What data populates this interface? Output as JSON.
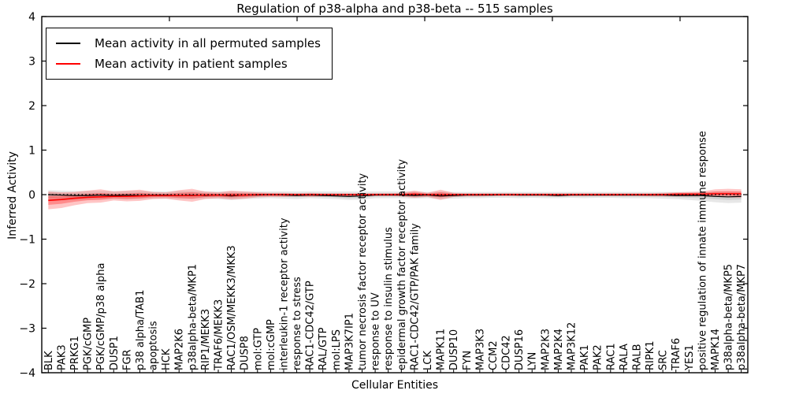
{
  "title": "Regulation of p38-alpha and p38-beta -- 515 samples",
  "axes": {
    "ylabel": "Inferred Activity",
    "xlabel": "Cellular Entities",
    "yticks": [
      -4,
      -3,
      -2,
      -1,
      0,
      1,
      2,
      3,
      4
    ],
    "ylim": [
      -4,
      4
    ]
  },
  "chart_data": {
    "type": "line",
    "title": "Regulation of p38-alpha and p38-beta -- 515 samples",
    "xlabel": "Cellular Entities",
    "ylabel": "Inferred Activity",
    "ylim": [
      -4,
      4
    ],
    "legend_position": "upper left",
    "grid": false,
    "categories": [
      "BLK",
      "PAK3",
      "PRKG1",
      "PGK/cGMP",
      "PGK/cGMP/p38 alpha",
      "DUSP1",
      "FGR",
      "p38 alpha/TAB1",
      "apoptosis",
      "HCK",
      "MAP2K6",
      "p38alpha-beta/MKP1",
      "RIP1/MEKK3",
      "TRAF6/MEKK3",
      "RAC1/OSM/MEKK3/MKK3",
      "DUSP8",
      "mol:GTP",
      "mol:cGMP",
      "interleukin-1 receptor activity",
      "response to stress",
      "RAC1-CDC42/GTP",
      "RAL/GTP",
      "mol:LPS",
      "MAP3K7IP1",
      "tumor necrosis factor receptor activity",
      "response to UV",
      "response to insulin stimulus",
      "epidermal growth factor receptor activity",
      "RAC1-CDC42/GTP/PAK family",
      "LCK",
      "MAPK11",
      "DUSP10",
      "FYN",
      "MAP3K3",
      "CCM2",
      "CDC42",
      "DUSP16",
      "LYN",
      "MAP2K3",
      "MAP2K4",
      "MAP3K12",
      "PAK1",
      "PAK2",
      "RAC1",
      "RALA",
      "RALB",
      "RIPK1",
      "SRC",
      "TRAF6",
      "YES1",
      "positive regulation of innate immune response",
      "MAPK14",
      "p38alpha-beta/MKP5",
      "p38alpha-beta/MKP7"
    ],
    "series": [
      {
        "name": "Mean activity in all permuted samples",
        "color": "#000000",
        "band_color": "#909090",
        "values": [
          0,
          -0.01,
          -0.02,
          -0.02,
          -0.01,
          -0.02,
          -0.01,
          -0.02,
          -0.01,
          -0.01,
          -0.02,
          -0.01,
          -0.02,
          -0.01,
          -0.03,
          -0.01,
          -0.01,
          0,
          -0.01,
          -0.02,
          -0.01,
          -0.02,
          -0.03,
          -0.04,
          -0.03,
          -0.01,
          -0.01,
          -0.01,
          -0.02,
          -0.01,
          -0.03,
          -0.02,
          -0.01,
          -0.01,
          -0.01,
          0,
          -0.01,
          -0.01,
          -0.01,
          -0.02,
          -0.01,
          -0.01,
          -0.01,
          -0.01,
          -0.01,
          -0.01,
          -0.01,
          -0.01,
          -0.02,
          -0.02,
          -0.02,
          -0.04,
          -0.05,
          -0.04
        ],
        "band_hi": [
          0.1,
          0.09,
          0.08,
          0.08,
          0.08,
          0.08,
          0.08,
          0.08,
          0.07,
          0.07,
          0.08,
          0.08,
          0.07,
          0.07,
          0.07,
          0.07,
          0.07,
          0.07,
          0.07,
          0.07,
          0.07,
          0.07,
          0.07,
          0.07,
          0.07,
          0.07,
          0.07,
          0.07,
          0.07,
          0.06,
          0.07,
          0.06,
          0.06,
          0.06,
          0.06,
          0.06,
          0.06,
          0.06,
          0.06,
          0.06,
          0.06,
          0.06,
          0.06,
          0.06,
          0.06,
          0.06,
          0.06,
          0.06,
          0.06,
          0.06,
          0.06,
          0.07,
          0.07,
          0.07
        ],
        "band_lo": [
          -0.14,
          -0.13,
          -0.12,
          -0.11,
          -0.11,
          -0.1,
          -0.11,
          -0.1,
          -0.09,
          -0.09,
          -0.1,
          -0.1,
          -0.09,
          -0.1,
          -0.12,
          -0.1,
          -0.09,
          -0.08,
          -0.09,
          -0.1,
          -0.08,
          -0.09,
          -0.1,
          -0.12,
          -0.11,
          -0.08,
          -0.08,
          -0.08,
          -0.09,
          -0.08,
          -0.1,
          -0.09,
          -0.08,
          -0.08,
          -0.07,
          -0.07,
          -0.08,
          -0.07,
          -0.08,
          -0.08,
          -0.07,
          -0.08,
          -0.07,
          -0.07,
          -0.08,
          -0.08,
          -0.08,
          -0.09,
          -0.1,
          -0.12,
          -0.14,
          -0.17,
          -0.19,
          -0.18
        ]
      },
      {
        "name": "Mean activity in patient samples",
        "color": "#ff0000",
        "band_color": "#ff3030",
        "values": [
          -0.13,
          -0.11,
          -0.08,
          -0.06,
          -0.05,
          -0.04,
          -0.04,
          -0.03,
          -0.02,
          -0.02,
          -0.02,
          -0.02,
          -0.01,
          -0.01,
          -0.01,
          -0.01,
          0,
          0,
          0,
          0,
          0,
          0,
          0,
          0,
          0,
          0,
          0,
          0,
          0.01,
          0,
          0,
          0,
          0,
          0,
          0,
          0,
          0,
          0,
          0,
          0,
          0,
          0,
          0,
          0,
          0,
          0,
          0,
          0,
          0.01,
          0.01,
          0.01,
          0.02,
          0.02,
          0.02
        ],
        "band_hi": [
          0.07,
          0.05,
          0.06,
          0.09,
          0.12,
          0.07,
          0.09,
          0.11,
          0.06,
          0.05,
          0.1,
          0.13,
          0.07,
          0.05,
          0.09,
          0.07,
          0.05,
          0.04,
          0.04,
          0.03,
          0.04,
          0.03,
          0.03,
          0.03,
          0.03,
          0.03,
          0.03,
          0.04,
          0.09,
          0.04,
          0.11,
          0.04,
          0.03,
          0.03,
          0.03,
          0.03,
          0.03,
          0.03,
          0.03,
          0.03,
          0.03,
          0.03,
          0.03,
          0.03,
          0.03,
          0.03,
          0.03,
          0.04,
          0.05,
          0.06,
          0.07,
          0.12,
          0.13,
          0.12
        ],
        "band_lo": [
          -0.33,
          -0.3,
          -0.24,
          -0.19,
          -0.18,
          -0.13,
          -0.15,
          -0.14,
          -0.1,
          -0.09,
          -0.13,
          -0.16,
          -0.1,
          -0.08,
          -0.11,
          -0.09,
          -0.06,
          -0.05,
          -0.05,
          -0.04,
          -0.05,
          -0.04,
          -0.04,
          -0.04,
          -0.04,
          -0.03,
          -0.03,
          -0.04,
          -0.07,
          -0.05,
          -0.12,
          -0.05,
          -0.04,
          -0.04,
          -0.03,
          -0.03,
          -0.03,
          -0.03,
          -0.03,
          -0.04,
          -0.03,
          -0.03,
          -0.03,
          -0.03,
          -0.03,
          -0.03,
          -0.04,
          -0.04,
          -0.04,
          -0.04,
          -0.04,
          -0.05,
          -0.06,
          -0.07
        ]
      }
    ],
    "reference_line": {
      "y": 0,
      "style": "dotted",
      "color": "#000000"
    }
  }
}
